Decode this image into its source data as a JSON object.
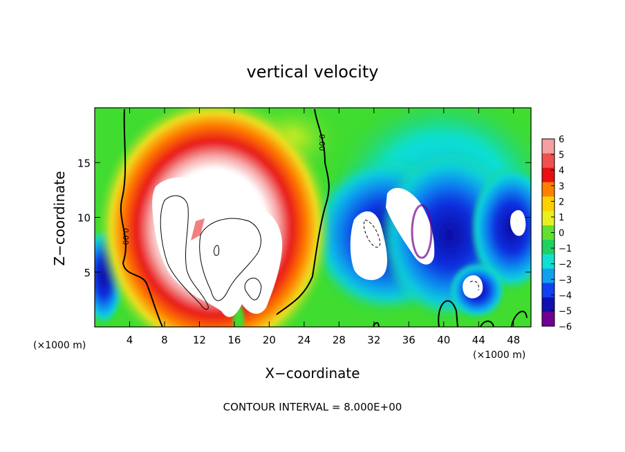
{
  "chart_data": {
    "type": "heatmap",
    "title": "vertical velocity",
    "xlabel": "X−coordinate",
    "ylabel": "Z−coordinate",
    "x_unit_left": "(×1000 m)",
    "x_unit_right": "(×1000 m)",
    "footer": "CONTOUR INTERVAL = 8.000E+00",
    "xlim": [
      0,
      50
    ],
    "ylim": [
      0,
      20
    ],
    "x_ticks": [
      4,
      8,
      12,
      16,
      20,
      24,
      28,
      32,
      36,
      40,
      44,
      48
    ],
    "x_tick_labels": [
      "4",
      "8",
      "12",
      "16",
      "20",
      "24",
      "28",
      "32",
      "36",
      "40",
      "44",
      "48"
    ],
    "y_ticks": [
      5,
      10,
      15
    ],
    "y_tick_labels": [
      "5",
      "10",
      "15"
    ],
    "colorbar": {
      "range": [
        -6,
        6
      ],
      "tick_labels": [
        "6",
        "5",
        "4",
        "3",
        "2",
        "1",
        "0",
        "−1",
        "−2",
        "−3",
        "−4",
        "−5",
        "−6"
      ],
      "colors": [
        "#f4a0a0",
        "#f05050",
        "#e81010",
        "#ff8000",
        "#ffd000",
        "#e8f020",
        "#60e030",
        "#20d060",
        "#10e0d0",
        "#10a0f0",
        "#1040f0",
        "#1010b0",
        "#700090"
      ]
    },
    "contour_labels": [
      "0.00",
      "0.00"
    ],
    "features": [
      {
        "name": "updraft",
        "x": 13,
        "z": 8,
        "w_max": 6
      },
      {
        "name": "downdraft",
        "x": 32,
        "z": 8,
        "w_min": -6
      },
      {
        "name": "downdraft",
        "x": 36,
        "z": 10,
        "w_min": -6
      },
      {
        "name": "downdraft",
        "x": 48,
        "z": 9,
        "w_min": -6
      },
      {
        "name": "downdraft",
        "x": 43.5,
        "z": 4,
        "w_min": -6
      }
    ]
  }
}
